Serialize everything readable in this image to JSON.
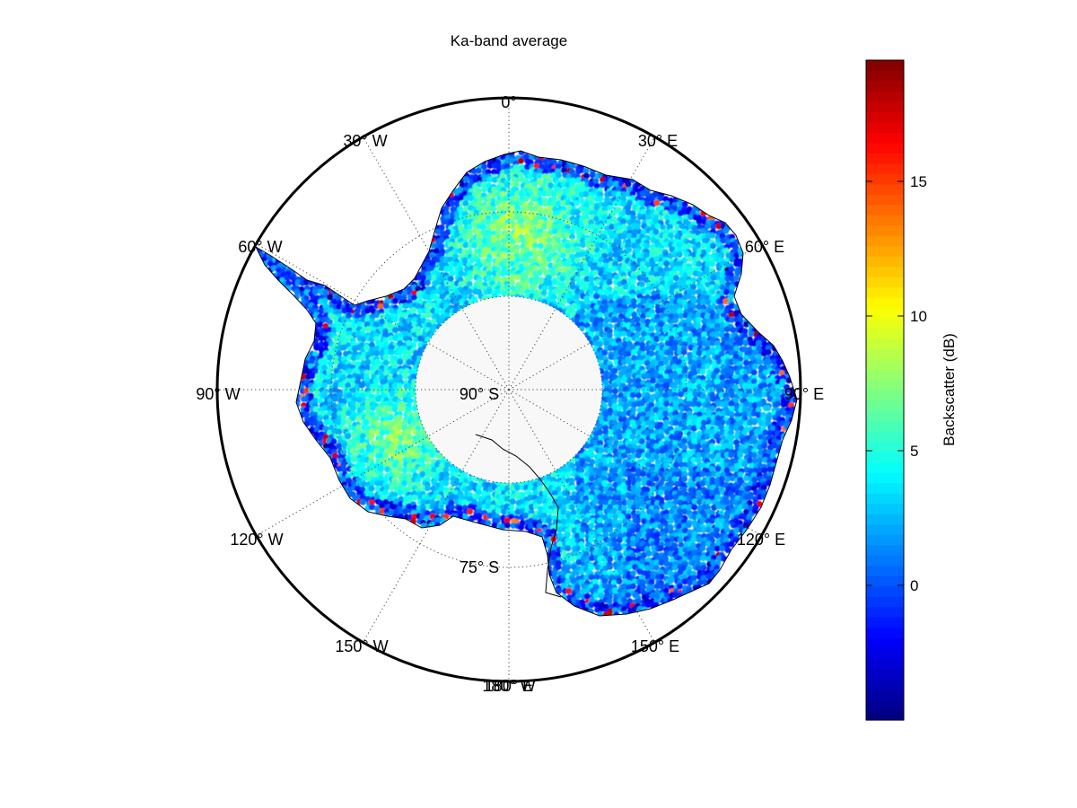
{
  "figure": {
    "title": "Ka-band average",
    "center_label": "90° S",
    "ring_label": "75° S",
    "meridian_labels": [
      {
        "lon": 0,
        "text": "0°"
      },
      {
        "lon": 30,
        "text": "30° E"
      },
      {
        "lon": 60,
        "text": "60° E"
      },
      {
        "lon": 90,
        "text": "90° E"
      },
      {
        "lon": 120,
        "text": "120° E"
      },
      {
        "lon": 150,
        "text": "150° E"
      },
      {
        "lon": 180,
        "text": "180° W"
      },
      {
        "lon": 180,
        "text": "180° E"
      },
      {
        "lon": -150,
        "text": "150° W"
      },
      {
        "lon": -120,
        "text": "120° W"
      },
      {
        "lon": -90,
        "text": "90° W"
      },
      {
        "lon": -60,
        "text": "60° W"
      },
      {
        "lon": -30,
        "text": "30° W"
      }
    ]
  },
  "colorbar": {
    "label": "Backscatter (dB)",
    "colormap": "jet",
    "range": [
      -5,
      19.5
    ],
    "ticks": [
      {
        "value": 0,
        "text": "0"
      },
      {
        "value": 5,
        "text": "5"
      },
      {
        "value": 10,
        "text": "10"
      },
      {
        "value": 15,
        "text": "15"
      }
    ]
  },
  "map": {
    "projection": "south polar stereographic",
    "pole_hole_edge_lat": -80,
    "colors": {
      "hole": "#f8f8f8",
      "coast": "#000000",
      "frame": "#000000",
      "grid": "#444444"
    }
  }
}
